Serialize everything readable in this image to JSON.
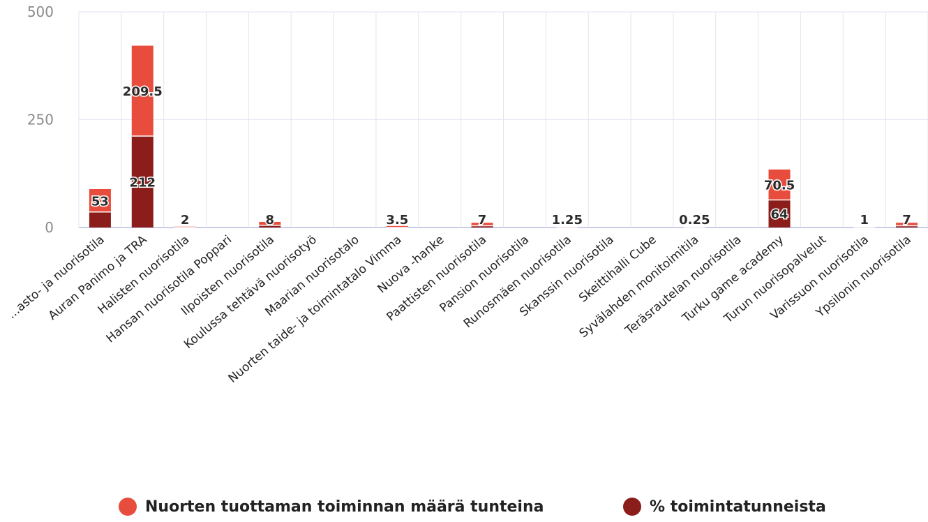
{
  "chart_data": {
    "type": "bar",
    "stacked": true,
    "ylim": [
      0,
      500
    ],
    "yticks": [
      0,
      250,
      500
    ],
    "grid": true,
    "legend_position": "bottom",
    "categories": [
      "...asto- ja nuorisotila",
      "Auran Panimo ja TRA",
      "Halisten nuorisotila",
      "Hansan nuorisotila Poppari",
      "Ilpoisten nuorisotila",
      "Koulussa tehtävä nuorisotyö",
      "Maarian nuorisotalo",
      "Nuorten taide- ja toimintatalo Vimma",
      "Nuova -hanke",
      "Paattisten nuorisotila",
      "Pansion nuorisotila",
      "Runosmäen nuorisotila",
      "Skanssin nuorisotila",
      "Skeittihalli Cube",
      "Syvälahden monitoimitila",
      "Teräsrautelan nuorisotila",
      "Turku game academy",
      "Turun nuorisopalvelut",
      "Varissuon nuorisotila",
      "Ypsilonin nuorisotila"
    ],
    "series": [
      {
        "name": "% toimintatunneista",
        "color": "#8b1d1b",
        "values": [
          36,
          212,
          0,
          0,
          5,
          0,
          0,
          0,
          0,
          4,
          0,
          0,
          0,
          0,
          0,
          0,
          64,
          0,
          0,
          4
        ]
      },
      {
        "name": "Nuorten tuottaman toiminnan määrä tunteina",
        "color": "#e84c3d",
        "values": [
          53,
          209.5,
          2,
          0,
          8,
          0,
          0,
          3.5,
          0,
          7,
          0,
          1.25,
          0,
          0,
          0.25,
          0,
          70.5,
          0,
          1,
          7
        ]
      }
    ],
    "data_labels": [
      {
        "index": 0,
        "text": "53",
        "series": "Nuorten tuottaman toiminnan määrä tunteina"
      },
      {
        "index": 1,
        "text": "209.5",
        "series": "Nuorten tuottaman toiminnan määrä tunteina"
      },
      {
        "index": 1,
        "text": "212",
        "series": "% toimintatunneista"
      },
      {
        "index": 2,
        "text": "2",
        "series": "Nuorten tuottaman toiminnan määrä tunteina"
      },
      {
        "index": 4,
        "text": "8",
        "series": "Nuorten tuottaman toiminnan määrä tunteina"
      },
      {
        "index": 7,
        "text": "3.5",
        "series": "Nuorten tuottaman toiminnan määrä tunteina"
      },
      {
        "index": 9,
        "text": "7",
        "series": "Nuorten tuottaman toiminnan määrä tunteina"
      },
      {
        "index": 11,
        "text": "1.25",
        "series": "Nuorten tuottaman toiminnan määrä tunteina"
      },
      {
        "index": 14,
        "text": "0.25",
        "series": "Nuorten tuottaman toiminnan määrä tunteina"
      },
      {
        "index": 16,
        "text": "70.5",
        "series": "Nuorten tuottaman toiminnan määrä tunteina"
      },
      {
        "index": 16,
        "text": "64",
        "series": "% toimintatunneista"
      },
      {
        "index": 18,
        "text": "1",
        "series": "Nuorten tuottaman toiminnan määrä tunteina"
      },
      {
        "index": 19,
        "text": "7",
        "series": "Nuorten tuottaman toiminnan määrä tunteina"
      }
    ],
    "legend": [
      {
        "label": "Nuorten tuottaman toiminnan määrä tunteina",
        "color": "#e84c3d"
      },
      {
        "label": "% toimintatunneista",
        "color": "#8b1d1b"
      }
    ]
  }
}
